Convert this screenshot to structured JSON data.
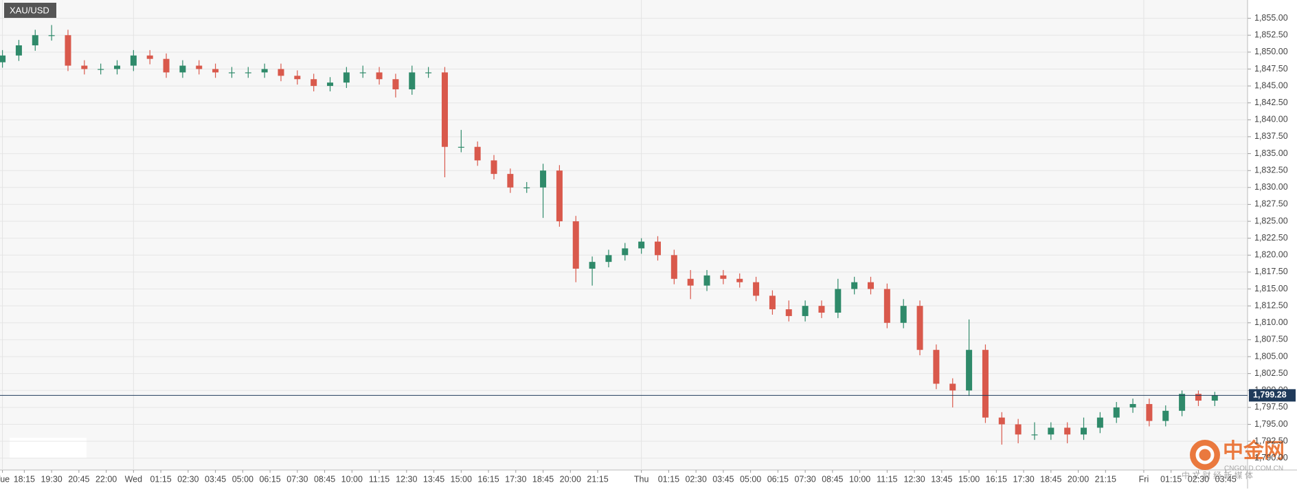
{
  "chart_data": {
    "type": "candlestick",
    "title": "XAU/USD",
    "x": [
      0,
      3,
      6,
      9,
      12,
      15,
      18,
      21,
      24,
      27,
      30,
      33,
      36,
      39,
      42,
      45,
      48,
      51,
      54,
      57,
      60,
      63,
      66,
      69,
      72,
      75,
      78,
      81,
      84,
      87,
      90,
      93,
      96,
      99,
      102,
      105,
      108,
      111,
      114,
      117,
      120,
      123,
      126,
      129,
      132,
      135,
      138,
      141,
      144,
      147,
      150,
      153,
      156,
      159,
      162,
      165,
      168,
      171,
      174,
      177,
      180,
      183,
      186,
      189,
      192,
      195,
      198,
      201,
      204,
      207,
      210,
      213,
      216,
      219,
      222
    ],
    "open": [
      1848.5,
      1849.5,
      1851,
      1852.5,
      1852.5,
      1848,
      1847.5,
      1847.5,
      1848,
      1849.5,
      1849,
      1847,
      1848,
      1847.5,
      1847,
      1847,
      1847,
      1847.5,
      1846.5,
      1846,
      1845,
      1845.5,
      1847,
      1847,
      1846,
      1844.5,
      1847,
      1847,
      1836,
      1836,
      1834,
      1832,
      1830,
      1830,
      1832.5,
      1825,
      1818,
      1819,
      1820,
      1821,
      1822,
      1820,
      1816.5,
      1815.5,
      1817,
      1816.5,
      1816,
      1814,
      1812,
      1811,
      1812.5,
      1811.5,
      1815,
      1816,
      1815,
      1810,
      1812.5,
      1806,
      1801,
      1800,
      1806,
      1796,
      1795,
      1793.5,
      1793.5,
      1794.5,
      1793.5,
      1794.5,
      1796,
      1797.5,
      1798,
      1795.5,
      1797,
      1799.5,
      1798.5
    ],
    "high": [
      1850.3,
      1851.8,
      1853.3,
      1854,
      1853.3,
      1848.8,
      1848.3,
      1848.8,
      1850.3,
      1850.3,
      1849.8,
      1848.8,
      1848.8,
      1848.3,
      1847.8,
      1847.8,
      1848.3,
      1848.3,
      1847.3,
      1846.8,
      1846.3,
      1847.8,
      1848,
      1847.8,
      1846.8,
      1848,
      1847.8,
      1847.8,
      1838.5,
      1836.8,
      1834.8,
      1832.8,
      1830.8,
      1833.5,
      1833.3,
      1825.8,
      1819.8,
      1820.8,
      1821.8,
      1822.5,
      1822.8,
      1820.8,
      1817.8,
      1817.8,
      1817.8,
      1817.3,
      1816.8,
      1814.8,
      1813.3,
      1813.3,
      1813.3,
      1816.5,
      1816.8,
      1816.8,
      1815.8,
      1813.5,
      1813.3,
      1806.8,
      1801.8,
      1810.5,
      1806.8,
      1796.8,
      1795.8,
      1795.3,
      1795.3,
      1795.3,
      1796,
      1796.8,
      1798.3,
      1798.8,
      1798.8,
      1797.8,
      1800,
      1800,
      1799.8
    ],
    "low": [
      1847.7,
      1848.7,
      1850.2,
      1851.7,
      1847.2,
      1846.7,
      1846.7,
      1846.7,
      1847.2,
      1848.2,
      1846.2,
      1846.2,
      1846.7,
      1846.2,
      1846.2,
      1846.2,
      1846.2,
      1845.7,
      1845.2,
      1844.2,
      1844.2,
      1844.7,
      1846.2,
      1845.2,
      1843.3,
      1843.7,
      1846.2,
      1831.5,
      1835.2,
      1833.2,
      1831.2,
      1829.2,
      1829.2,
      1825.5,
      1824.2,
      1816,
      1815.5,
      1818.2,
      1819.2,
      1820.2,
      1819.2,
      1815.7,
      1813.5,
      1814.7,
      1815.7,
      1815.2,
      1813.2,
      1811.2,
      1810.2,
      1810.2,
      1810.7,
      1810.7,
      1814.2,
      1814.2,
      1809.2,
      1809.2,
      1805.2,
      1800.2,
      1797.5,
      1799.2,
      1795.2,
      1792,
      1792.2,
      1792.7,
      1792.7,
      1792.2,
      1792.7,
      1793.7,
      1795.2,
      1796.7,
      1794.7,
      1794.7,
      1796.2,
      1797.7,
      1797.7
    ],
    "close": [
      1849.5,
      1851,
      1852.5,
      1852.5,
      1848,
      1847.5,
      1847.5,
      1848,
      1849.5,
      1849,
      1847,
      1848,
      1847.5,
      1847,
      1847,
      1847,
      1847.5,
      1846.5,
      1846,
      1845,
      1845.5,
      1847,
      1847,
      1846,
      1844.5,
      1847,
      1847,
      1836,
      1836,
      1834,
      1832,
      1830,
      1830,
      1832.5,
      1825,
      1818,
      1819,
      1820,
      1821,
      1822,
      1820,
      1816.5,
      1815.5,
      1817,
      1816.5,
      1816,
      1814,
      1812,
      1811,
      1812.5,
      1811.5,
      1815,
      1816,
      1815,
      1810,
      1812.5,
      1806,
      1801,
      1800,
      1806,
      1796,
      1795,
      1793.5,
      1793.5,
      1794.5,
      1793.5,
      1794.5,
      1796,
      1797.5,
      1798,
      1795.5,
      1797,
      1799.5,
      1798.5,
      1799.28
    ],
    "up_color": "#2f8a6a",
    "down_color": "#d9594c",
    "xlim": [
      -0.45,
      228
    ],
    "xticks": [
      {
        "value": 0,
        "label": "Tue"
      },
      {
        "value": 4,
        "label": "18:15"
      },
      {
        "value": 9,
        "label": "19:30"
      },
      {
        "value": 14,
        "label": "20:45"
      },
      {
        "value": 19,
        "label": "22:00"
      },
      {
        "value": 24,
        "label": "Wed"
      },
      {
        "value": 29,
        "label": "01:15"
      },
      {
        "value": 34,
        "label": "02:30"
      },
      {
        "value": 39,
        "label": "03:45"
      },
      {
        "value": 44,
        "label": "05:00"
      },
      {
        "value": 49,
        "label": "06:15"
      },
      {
        "value": 54,
        "label": "07:30"
      },
      {
        "value": 59,
        "label": "08:45"
      },
      {
        "value": 64,
        "label": "10:00"
      },
      {
        "value": 69,
        "label": "11:15"
      },
      {
        "value": 74,
        "label": "12:30"
      },
      {
        "value": 79,
        "label": "13:45"
      },
      {
        "value": 84,
        "label": "15:00"
      },
      {
        "value": 89,
        "label": "16:15"
      },
      {
        "value": 94,
        "label": "17:30"
      },
      {
        "value": 99,
        "label": "18:45"
      },
      {
        "value": 104,
        "label": "20:00"
      },
      {
        "value": 109,
        "label": "21:15"
      },
      {
        "value": 117,
        "label": "Thu"
      },
      {
        "value": 122,
        "label": "01:15"
      },
      {
        "value": 127,
        "label": "02:30"
      },
      {
        "value": 132,
        "label": "03:45"
      },
      {
        "value": 137,
        "label": "05:00"
      },
      {
        "value": 142,
        "label": "06:15"
      },
      {
        "value": 147,
        "label": "07:30"
      },
      {
        "value": 152,
        "label": "08:45"
      },
      {
        "value": 157,
        "label": "10:00"
      },
      {
        "value": 162,
        "label": "11:15"
      },
      {
        "value": 167,
        "label": "12:30"
      },
      {
        "value": 172,
        "label": "13:45"
      },
      {
        "value": 177,
        "label": "15:00"
      },
      {
        "value": 182,
        "label": "16:15"
      },
      {
        "value": 187,
        "label": "17:30"
      },
      {
        "value": 192,
        "label": "18:45"
      },
      {
        "value": 197,
        "label": "20:00"
      },
      {
        "value": 202,
        "label": "21:15"
      },
      {
        "value": 209,
        "label": "Fri"
      },
      {
        "value": 214,
        "label": "01:15"
      },
      {
        "value": 219,
        "label": "02:30"
      },
      {
        "value": 224,
        "label": "03:45"
      }
    ],
    "ylim": [
      1788.25,
      1857.7
    ],
    "yticks": [
      {
        "value": 1790,
        "label": "1,790.00"
      },
      {
        "value": 1792.5,
        "label": "1,792.50"
      },
      {
        "value": 1795,
        "label": "1,795.00"
      },
      {
        "value": 1797.5,
        "label": "1,797.50"
      },
      {
        "value": 1800,
        "label": "1,800.00"
      },
      {
        "value": 1802.5,
        "label": "1,802.50"
      },
      {
        "value": 1805,
        "label": "1,805.00"
      },
      {
        "value": 1807.5,
        "label": "1,807.50"
      },
      {
        "value": 1810,
        "label": "1,810.00"
      },
      {
        "value": 1812.5,
        "label": "1,812.50"
      },
      {
        "value": 1815,
        "label": "1,815.00"
      },
      {
        "value": 1817.5,
        "label": "1,817.50"
      },
      {
        "value": 1820,
        "label": "1,820.00"
      },
      {
        "value": 1822.5,
        "label": "1,822.50"
      },
      {
        "value": 1825,
        "label": "1,825.00"
      },
      {
        "value": 1827.5,
        "label": "1,827.50"
      },
      {
        "value": 1830,
        "label": "1,830.00"
      },
      {
        "value": 1832.5,
        "label": "1,832.50"
      },
      {
        "value": 1835,
        "label": "1,835.00"
      },
      {
        "value": 1837.5,
        "label": "1,837.50"
      },
      {
        "value": 1840,
        "label": "1,840.00"
      },
      {
        "value": 1842.5,
        "label": "1,842.50"
      },
      {
        "value": 1845,
        "label": "1,845.00"
      },
      {
        "value": 1847.5,
        "label": "1,847.50"
      },
      {
        "value": 1850,
        "label": "1,850.00"
      },
      {
        "value": 1852.5,
        "label": "1,852.50"
      },
      {
        "value": 1855,
        "label": "1,855.00"
      }
    ],
    "grid": true,
    "last_price": {
      "value": 1799.28,
      "label": "1,799.28",
      "color": "#1f3a5a"
    },
    "watermark": {
      "logo": "中金网",
      "site": "CNGOLD.COM.CN",
      "slogan": "中 文 财 经 新 媒 体"
    }
  }
}
